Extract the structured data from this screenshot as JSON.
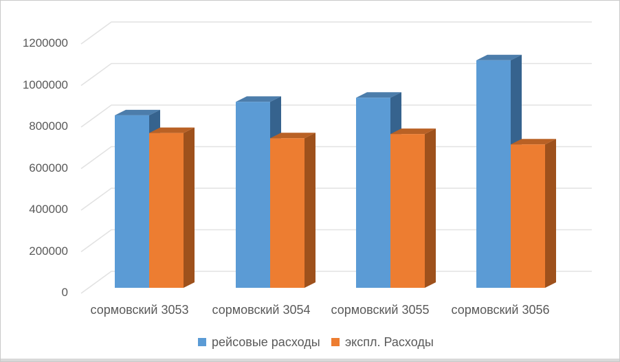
{
  "chart_data": {
    "type": "bar",
    "subtype": "3d-clustered-column",
    "title": "",
    "xlabel": "",
    "ylabel": "",
    "categories": [
      "сормовский 3053",
      "сормовский 3054",
      "сормовский 3055",
      "сормовский 3056"
    ],
    "series": [
      {
        "name": "рейсовые расходы",
        "color": "#5B9BD5",
        "color_top": "#4C7DAB",
        "color_side": "#36638E",
        "values": [
          830000,
          895000,
          915000,
          1095000
        ]
      },
      {
        "name": "экспл. Расходы",
        "color": "#ED7D31",
        "color_top": "#B96125",
        "color_side": "#9E511C",
        "values": [
          745000,
          720000,
          740000,
          690000
        ]
      }
    ],
    "y_ticks": [
      0,
      200000,
      400000,
      600000,
      800000,
      1000000,
      1200000
    ],
    "y_tick_labels": [
      "0",
      "200000",
      "400000",
      "600000",
      "800000",
      "1000000",
      "1200000"
    ],
    "ylim": [
      0,
      1200000
    ],
    "grid": true,
    "legend_position": "bottom",
    "axis_text_color": "#595959",
    "gridline_color": "#E2E2E2",
    "background_color": "#FFFFFF"
  }
}
